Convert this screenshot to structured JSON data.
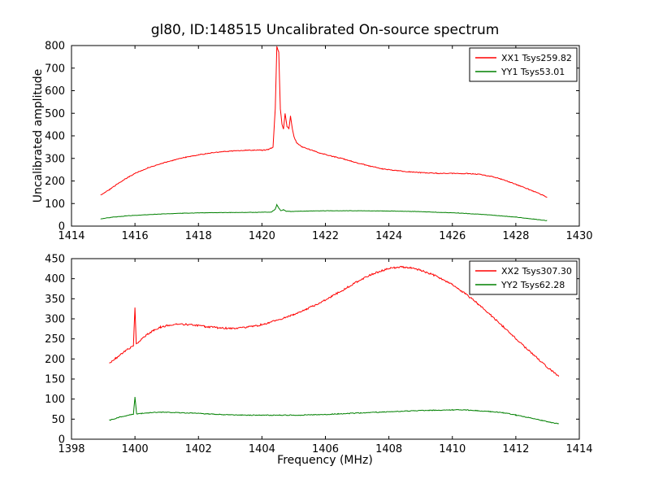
{
  "title": "gl80, ID:148515 Uncalibrated On-source spectrum",
  "axes": {
    "xlabel": "Frequency (MHz)",
    "ylabel": "Uncalibrated amplitude"
  },
  "colors": {
    "background": "#ffffff",
    "frame": "#000000",
    "text": "#000000",
    "series_red": "#ff0000",
    "series_green": "#008000"
  },
  "chart_data": [
    {
      "type": "line",
      "subplot": "top",
      "xlim": [
        1414,
        1430
      ],
      "ylim": [
        0,
        800
      ],
      "xticks": [
        1414,
        1416,
        1418,
        1420,
        1422,
        1424,
        1426,
        1428,
        1430
      ],
      "yticks": [
        0,
        100,
        200,
        300,
        400,
        500,
        600,
        700,
        800
      ],
      "grid": false,
      "legend_position": "upper right",
      "series": [
        {
          "name": "XX1 Tsys259.82",
          "color": "#ff0000",
          "noise": 1.8,
          "points": [
            [
              1414.92,
              138
            ],
            [
              1415.2,
              162
            ],
            [
              1415.5,
              192
            ],
            [
              1415.8,
              218
            ],
            [
              1416.1,
              240
            ],
            [
              1416.4,
              258
            ],
            [
              1416.8,
              276
            ],
            [
              1417.2,
              292
            ],
            [
              1417.6,
              305
            ],
            [
              1418.0,
              316
            ],
            [
              1418.4,
              324
            ],
            [
              1418.8,
              330
            ],
            [
              1419.2,
              334
            ],
            [
              1419.6,
              337
            ],
            [
              1420.0,
              336
            ],
            [
              1420.2,
              339
            ],
            [
              1420.35,
              350
            ],
            [
              1420.42,
              520
            ],
            [
              1420.47,
              795
            ],
            [
              1420.53,
              770
            ],
            [
              1420.58,
              520
            ],
            [
              1420.63,
              452
            ],
            [
              1420.68,
              430
            ],
            [
              1420.73,
              498
            ],
            [
              1420.79,
              442
            ],
            [
              1420.85,
              432
            ],
            [
              1420.9,
              487
            ],
            [
              1420.96,
              430
            ],
            [
              1421.02,
              392
            ],
            [
              1421.1,
              368
            ],
            [
              1421.25,
              352
            ],
            [
              1421.5,
              340
            ],
            [
              1421.8,
              325
            ],
            [
              1422.2,
              310
            ],
            [
              1422.6,
              297
            ],
            [
              1423.0,
              280
            ],
            [
              1423.4,
              266
            ],
            [
              1423.8,
              254
            ],
            [
              1424.2,
              246
            ],
            [
              1424.6,
              241
            ],
            [
              1425.0,
              237
            ],
            [
              1425.5,
              234
            ],
            [
              1426.0,
              233
            ],
            [
              1426.5,
              233
            ],
            [
              1426.9,
              229
            ],
            [
              1427.3,
              218
            ],
            [
              1427.7,
              201
            ],
            [
              1428.1,
              180
            ],
            [
              1428.5,
              158
            ],
            [
              1428.8,
              140
            ],
            [
              1428.98,
              127
            ]
          ]
        },
        {
          "name": "YY1 Tsys53.01",
          "color": "#008000",
          "noise": 0.8,
          "points": [
            [
              1414.92,
              32
            ],
            [
              1415.3,
              40
            ],
            [
              1415.8,
              46
            ],
            [
              1416.3,
              50
            ],
            [
              1416.9,
              54
            ],
            [
              1417.5,
              57
            ],
            [
              1418.2,
              59
            ],
            [
              1419.0,
              60
            ],
            [
              1419.8,
              61
            ],
            [
              1420.3,
              62
            ],
            [
              1420.42,
              75
            ],
            [
              1420.47,
              95
            ],
            [
              1420.53,
              80
            ],
            [
              1420.6,
              68
            ],
            [
              1420.68,
              73
            ],
            [
              1420.76,
              66
            ],
            [
              1420.9,
              65
            ],
            [
              1421.2,
              66
            ],
            [
              1421.6,
              67
            ],
            [
              1422.2,
              68
            ],
            [
              1423.0,
              68
            ],
            [
              1423.8,
              67
            ],
            [
              1424.4,
              66
            ],
            [
              1425.0,
              64
            ],
            [
              1425.6,
              61
            ],
            [
              1426.2,
              58
            ],
            [
              1426.8,
              53
            ],
            [
              1427.4,
              47
            ],
            [
              1428.0,
              40
            ],
            [
              1428.5,
              32
            ],
            [
              1428.98,
              24
            ]
          ]
        }
      ]
    },
    {
      "type": "line",
      "subplot": "bottom",
      "xlim": [
        1398,
        1414
      ],
      "ylim": [
        0,
        450
      ],
      "xticks": [
        1398,
        1400,
        1402,
        1404,
        1406,
        1408,
        1410,
        1412,
        1414
      ],
      "yticks": [
        0,
        50,
        100,
        150,
        200,
        250,
        300,
        350,
        400,
        450
      ],
      "grid": false,
      "legend_position": "upper right",
      "series": [
        {
          "name": "XX2 Tsys307.30",
          "color": "#ff0000",
          "noise": 2.2,
          "points": [
            [
              1399.2,
              190
            ],
            [
              1399.4,
              202
            ],
            [
              1399.6,
              214
            ],
            [
              1399.8,
              226
            ],
            [
              1399.95,
              232
            ],
            [
              1400.0,
              330
            ],
            [
              1400.04,
              236
            ],
            [
              1400.2,
              248
            ],
            [
              1400.4,
              262
            ],
            [
              1400.6,
              272
            ],
            [
              1400.8,
              279
            ],
            [
              1401.0,
              283
            ],
            [
              1401.3,
              286
            ],
            [
              1401.6,
              286
            ],
            [
              1401.9,
              284
            ],
            [
              1402.2,
              281
            ],
            [
              1402.6,
              278
            ],
            [
              1403.0,
              276
            ],
            [
              1403.4,
              278
            ],
            [
              1403.8,
              282
            ],
            [
              1404.2,
              290
            ],
            [
              1404.6,
              299
            ],
            [
              1405.0,
              311
            ],
            [
              1405.4,
              324
            ],
            [
              1405.8,
              339
            ],
            [
              1406.2,
              356
            ],
            [
              1406.6,
              374
            ],
            [
              1407.0,
              393
            ],
            [
              1407.4,
              409
            ],
            [
              1407.8,
              421
            ],
            [
              1408.1,
              427
            ],
            [
              1408.4,
              429
            ],
            [
              1408.7,
              427
            ],
            [
              1409.0,
              421
            ],
            [
              1409.3,
              413
            ],
            [
              1409.6,
              402
            ],
            [
              1410.0,
              385
            ],
            [
              1410.4,
              363
            ],
            [
              1410.8,
              338
            ],
            [
              1411.2,
              310
            ],
            [
              1411.6,
              281
            ],
            [
              1412.0,
              251
            ],
            [
              1412.4,
              221
            ],
            [
              1412.8,
              193
            ],
            [
              1413.1,
              172
            ],
            [
              1413.35,
              157
            ]
          ]
        },
        {
          "name": "YY2 Tsys62.28",
          "color": "#008000",
          "noise": 1.0,
          "points": [
            [
              1399.2,
              47
            ],
            [
              1399.5,
              55
            ],
            [
              1399.8,
              60
            ],
            [
              1399.95,
              62
            ],
            [
              1400.0,
              105
            ],
            [
              1400.05,
              63
            ],
            [
              1400.3,
              65
            ],
            [
              1400.6,
              67
            ],
            [
              1401.0,
              67
            ],
            [
              1401.4,
              66
            ],
            [
              1401.8,
              65
            ],
            [
              1402.3,
              63
            ],
            [
              1402.8,
              61
            ],
            [
              1403.4,
              60
            ],
            [
              1404.0,
              60
            ],
            [
              1404.6,
              60
            ],
            [
              1405.2,
              60
            ],
            [
              1405.8,
              61
            ],
            [
              1406.4,
              63
            ],
            [
              1407.0,
              65
            ],
            [
              1407.6,
              67
            ],
            [
              1408.2,
              69
            ],
            [
              1408.8,
              71
            ],
            [
              1409.4,
              72
            ],
            [
              1410.0,
              73
            ],
            [
              1410.4,
              73
            ],
            [
              1410.8,
              71
            ],
            [
              1411.2,
              69
            ],
            [
              1411.6,
              66
            ],
            [
              1412.0,
              60
            ],
            [
              1412.4,
              54
            ],
            [
              1412.8,
              47
            ],
            [
              1413.1,
              42
            ],
            [
              1413.35,
              38
            ]
          ]
        }
      ]
    }
  ]
}
